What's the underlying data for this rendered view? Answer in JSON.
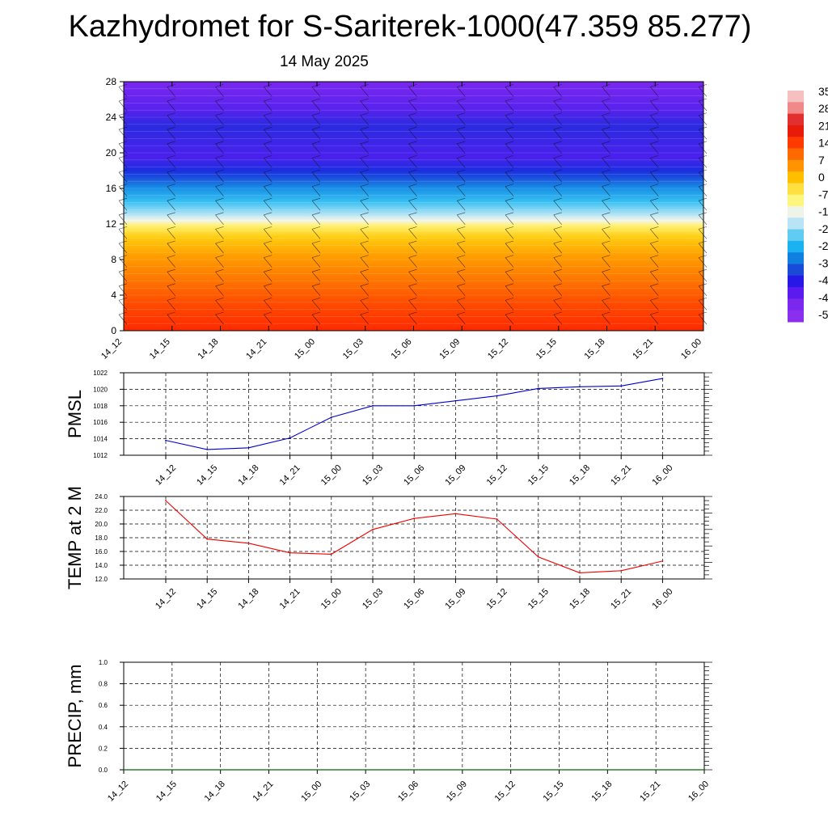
{
  "title": "Kazhydromet for S-Sariterek-1000(47.359 85.277)",
  "subtitle": "14 May 2025",
  "chart_data": [
    {
      "type": "heatmap",
      "name": "cross-section",
      "x_ticks": [
        "14_12",
        "14_15",
        "14_18",
        "14_21",
        "15_00",
        "15_03",
        "15_06",
        "15_09",
        "15_12",
        "15_15",
        "15_18",
        "15_21",
        "16_00"
      ],
      "y_ticks": [
        0,
        4,
        8,
        12,
        16,
        20,
        24,
        28
      ],
      "ylim": [
        0,
        28
      ],
      "colorbar_labels": [
        "35",
        "28",
        "21",
        "14",
        "7",
        "0",
        "-7",
        "-1",
        "-2",
        "-2",
        "-3",
        "-4",
        "-4",
        "-5"
      ],
      "colorbar_colors": [
        "#f4c0c0",
        "#f08a8a",
        "#e23030",
        "#e81a0a",
        "#ff3a00",
        "#ff6a00",
        "#ff9400",
        "#ffbe00",
        "#ffe040",
        "#fff680",
        "#eef4e8",
        "#b8e4f6",
        "#60ccf2",
        "#1ab2f0",
        "#1080e0",
        "#1a4ad8",
        "#2818e8",
        "#5a1af0",
        "#7a28ee",
        "#8a2ef0"
      ],
      "height_bands": [
        {
          "z": 0,
          "color": "#ff2a00"
        },
        {
          "z": 3,
          "color": "#ff4a00"
        },
        {
          "z": 6,
          "color": "#ff7a00"
        },
        {
          "z": 8.5,
          "color": "#ffa000"
        },
        {
          "z": 10.5,
          "color": "#ffcc10"
        },
        {
          "z": 11.8,
          "color": "#fff070"
        },
        {
          "z": 12.4,
          "color": "#f2f6ea"
        },
        {
          "z": 13.2,
          "color": "#a8e0f6"
        },
        {
          "z": 14.5,
          "color": "#38c0f2"
        },
        {
          "z": 16,
          "color": "#1890e6"
        },
        {
          "z": 17.2,
          "color": "#1a50dc"
        },
        {
          "z": 18,
          "color": "#1a2ee0"
        },
        {
          "z": 19.5,
          "color": "#4a20ec"
        },
        {
          "z": 21.5,
          "color": "#3a26e6"
        },
        {
          "z": 23,
          "color": "#2a2ae0"
        },
        {
          "z": 25,
          "color": "#5a22ee"
        },
        {
          "z": 28,
          "color": "#7a28ee"
        }
      ]
    },
    {
      "type": "line",
      "ylabel": "PMSL",
      "x": [
        "14_12",
        "14_15",
        "14_18",
        "14_21",
        "15_00",
        "15_03",
        "15_06",
        "15_09",
        "15_12",
        "15_15",
        "15_18",
        "15_21",
        "16_00"
      ],
      "values": [
        1013.8,
        1012.7,
        1012.9,
        1014.1,
        1016.6,
        1018.0,
        1018.0,
        1018.6,
        1019.2,
        1020.1,
        1020.3,
        1020.4,
        1021.3
      ],
      "ylim": [
        1012,
        1022
      ],
      "y_ticks": [
        "1012",
        "1014",
        "1016",
        "1018",
        "1020",
        "1022"
      ],
      "color": "#0000cc",
      "grid": true
    },
    {
      "type": "line",
      "ylabel": "TEMP at 2 M",
      "x": [
        "14_12",
        "14_15",
        "14_18",
        "14_21",
        "15_00",
        "15_03",
        "15_06",
        "15_09",
        "15_12",
        "15_15",
        "15_18",
        "15_21",
        "16_00"
      ],
      "values": [
        23.4,
        17.8,
        17.2,
        15.8,
        15.6,
        19.2,
        20.8,
        21.5,
        20.7,
        15.2,
        12.9,
        13.2,
        14.6
      ],
      "ylim": [
        12,
        24
      ],
      "y_ticks": [
        "12.0",
        "14.0",
        "16.0",
        "18.0",
        "20.0",
        "22.0",
        "24.0"
      ],
      "color": "#ee0000",
      "grid": true
    },
    {
      "type": "line",
      "ylabel": "PRECIP, mm",
      "x": [
        "14_12",
        "14_15",
        "14_18",
        "14_21",
        "15_00",
        "15_03",
        "15_06",
        "15_09",
        "15_12",
        "15_15",
        "15_18",
        "15_21",
        "16_00"
      ],
      "values": [
        0,
        0,
        0,
        0,
        0,
        0,
        0,
        0,
        0,
        0,
        0,
        0,
        0
      ],
      "ylim": [
        0,
        1
      ],
      "y_ticks": [
        "0.0",
        "0.2",
        "0.4",
        "0.6",
        "0.8",
        "1.0"
      ],
      "color": "#006600",
      "grid": true
    }
  ]
}
